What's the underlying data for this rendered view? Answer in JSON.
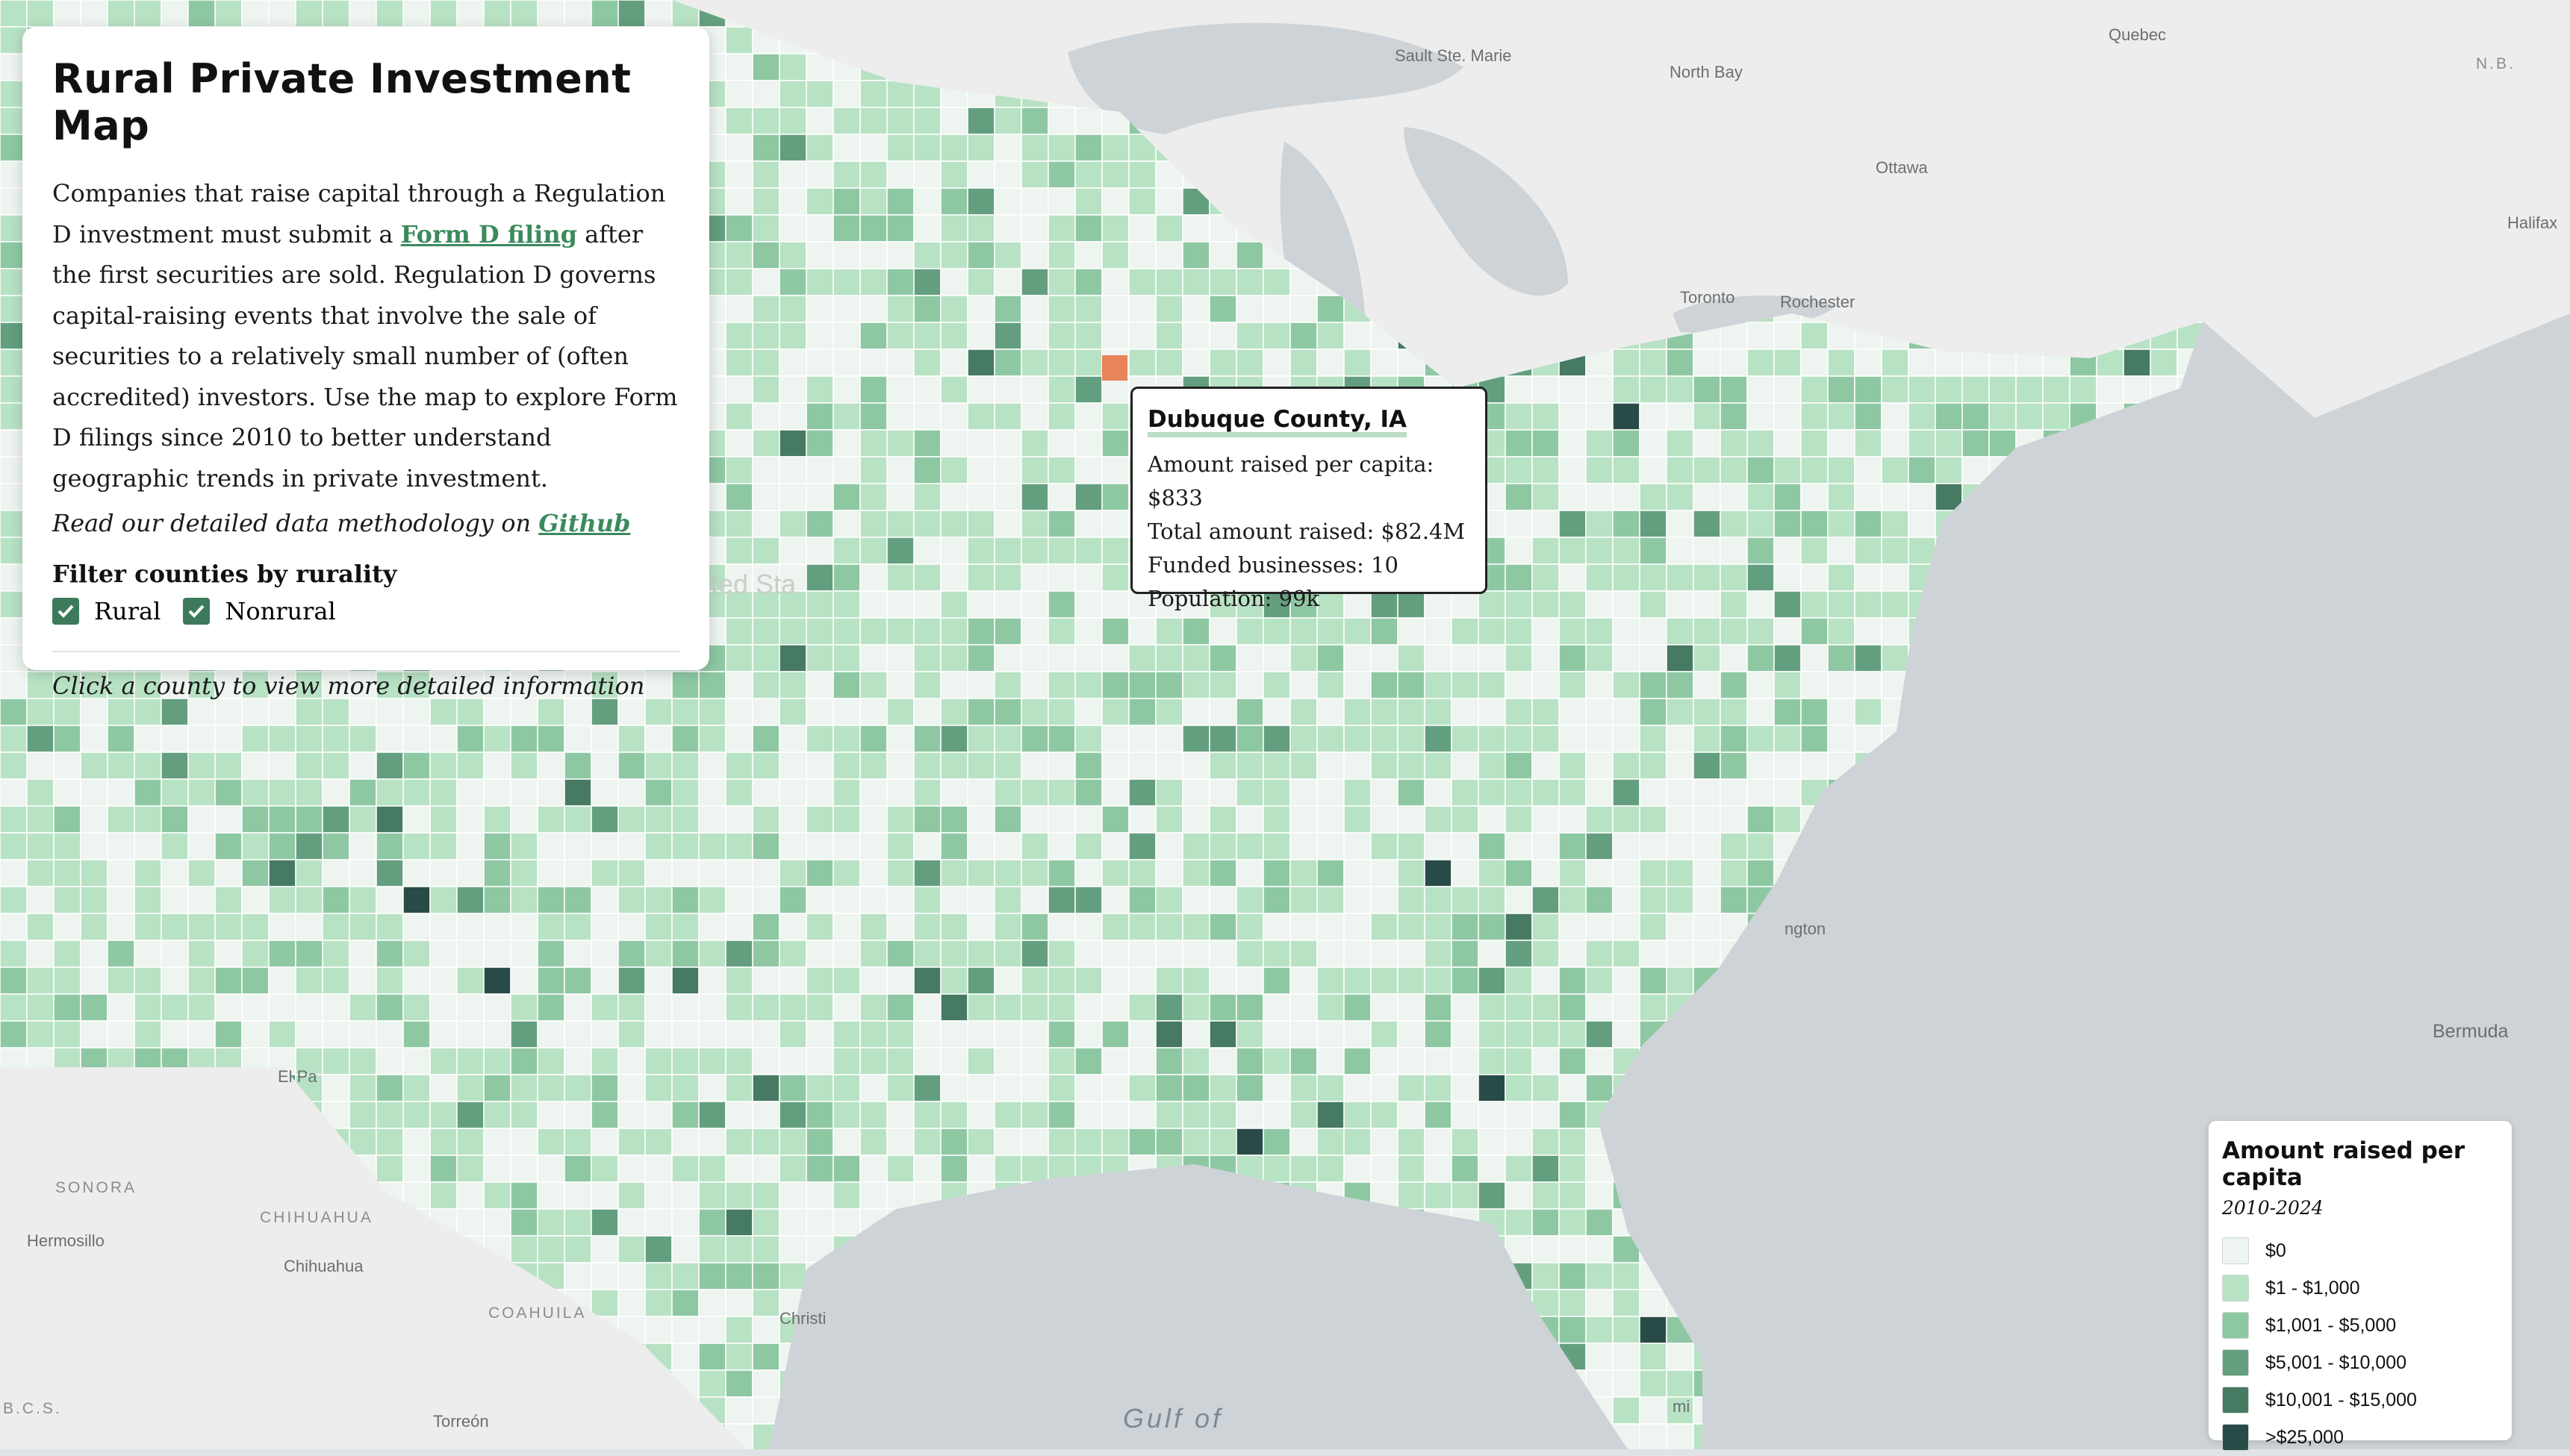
{
  "panel": {
    "title": "Rural Private Investment Map",
    "desc_before_link": "Companies that raise capital through a Regulation D investment must submit a ",
    "link_text": "Form D filing",
    "desc_after_link": " after the first securities are sold. Regulation D governs capital-raising events that involve the sale of securities to a relatively small number of (often accredited) investors. Use the map to explore Form D filings since 2010 to better understand geographic trends in private investment.",
    "methodology_prefix": "Read our detailed data methodology on ",
    "methodology_link": "Github",
    "filter_title": "Filter counties by rurality",
    "filters": [
      {
        "label": "Rural",
        "checked": true
      },
      {
        "label": "Nonrural",
        "checked": true
      }
    ],
    "hint": "Click a county to view more detailed information"
  },
  "tooltip": {
    "title": "Dubuque County, IA",
    "rows": [
      "Amount raised per capita: $833",
      "Total amount raised: $82.4M",
      "Funded businesses: 10",
      "Population: 99k"
    ]
  },
  "legend": {
    "title": "Amount raised per capita",
    "subtitle": "2010-2024",
    "items": [
      {
        "label": "$0",
        "color": "#eef4f0"
      },
      {
        "label": "$1 - $1,000",
        "color": "#b8e2c4"
      },
      {
        "label": "$1,001 - $5,000",
        "color": "#8ec8a3"
      },
      {
        "label": "$5,001 - $10,000",
        "color": "#639f7f"
      },
      {
        "label": "$10,001 - $15,000",
        "color": "#467a63"
      },
      {
        "label": ">$25,000",
        "color": "#294b47"
      }
    ]
  },
  "map_labels": {
    "sault": "Sault Ste. Marie",
    "north_bay": "North Bay",
    "quebec": "Quebec",
    "ottawa": "Ottawa",
    "toronto": "Toronto",
    "rochester": "Rochester",
    "halifax": "Halifax",
    "nb": "N.B.",
    "bermuda": "Bermuda",
    "gulf": "Gulf of",
    "sonora": "SONORA",
    "chihuahua_state": "CHIHUAHUA",
    "chihuahua_city": "Chihuahua",
    "hermosillo": "Hermosillo",
    "coahuila": "COAHUILA",
    "torreon": "Torreón",
    "el_paso": "El Pa",
    "bcs": "B.C.S.",
    "christi": "Christi",
    "ington": "ngton",
    "miami": "mi",
    "united_states": "ted Sta"
  },
  "colors": {
    "selected_county": "#e8845a",
    "water": "#ced3d7",
    "land_outside": "#eeeeee"
  },
  "selected_county": "Dubuque County, IA"
}
